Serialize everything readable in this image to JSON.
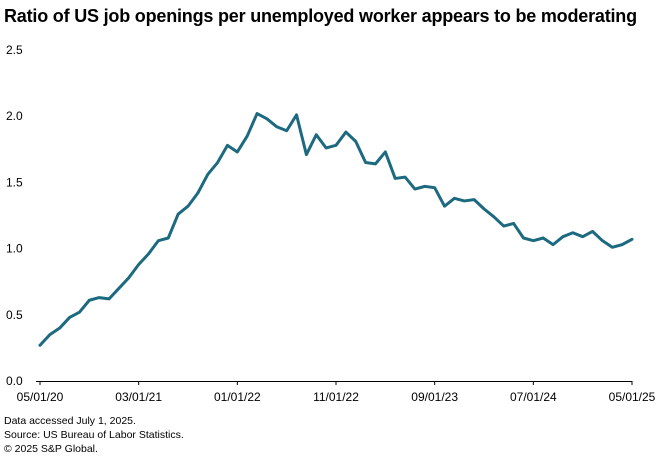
{
  "chart_data": {
    "type": "line",
    "title": "Ratio of US job openings per unemployed worker appears to be moderating",
    "xlabel": "",
    "ylabel": "",
    "x_tick_labels": [
      "05/01/20",
      "03/01/21",
      "01/01/22",
      "11/01/22",
      "09/01/23",
      "07/01/24",
      "05/01/25"
    ],
    "y_tick_labels": [
      "0.0",
      "0.5",
      "1.0",
      "1.5",
      "2.0",
      "2.5"
    ],
    "ylim": [
      0,
      2.5
    ],
    "grid": false,
    "line_color": "#1d6a80",
    "series": [
      {
        "x": [
          "2020-05",
          "2020-06",
          "2020-07",
          "2020-08",
          "2020-09",
          "2020-10",
          "2020-11",
          "2020-12",
          "2021-01",
          "2021-02",
          "2021-03",
          "2021-04",
          "2021-05",
          "2021-06",
          "2021-07",
          "2021-08",
          "2021-09",
          "2021-10",
          "2021-11",
          "2021-12",
          "2022-01",
          "2022-02",
          "2022-03",
          "2022-04",
          "2022-05",
          "2022-06",
          "2022-07",
          "2022-08",
          "2022-09",
          "2022-10",
          "2022-11",
          "2022-12",
          "2023-01",
          "2023-02",
          "2023-03",
          "2023-04",
          "2023-05",
          "2023-06",
          "2023-07",
          "2023-08",
          "2023-09",
          "2023-10",
          "2023-11",
          "2023-12",
          "2024-01",
          "2024-02",
          "2024-03",
          "2024-04",
          "2024-05",
          "2024-06",
          "2024-07",
          "2024-08",
          "2024-09",
          "2024-10",
          "2024-11",
          "2024-12",
          "2025-01",
          "2025-02",
          "2025-03",
          "2025-04",
          "2025-05"
        ],
        "y": [
          0.27,
          0.35,
          0.4,
          0.48,
          0.52,
          0.61,
          0.63,
          0.62,
          0.7,
          0.78,
          0.88,
          0.96,
          1.06,
          1.08,
          1.26,
          1.32,
          1.42,
          1.56,
          1.65,
          1.78,
          1.73,
          1.85,
          2.02,
          1.98,
          1.92,
          1.89,
          2.01,
          1.71,
          1.86,
          1.76,
          1.78,
          1.88,
          1.81,
          1.65,
          1.64,
          1.73,
          1.53,
          1.54,
          1.45,
          1.47,
          1.46,
          1.32,
          1.38,
          1.36,
          1.37,
          1.3,
          1.24,
          1.17,
          1.19,
          1.08,
          1.06,
          1.08,
          1.03,
          1.09,
          1.12,
          1.09,
          1.13,
          1.06,
          1.01,
          1.03,
          1.07
        ]
      }
    ]
  },
  "footnotes": {
    "line1": "Data accessed July 1, 2025.",
    "line2": "Source: US Bureau of Labor Statistics.",
    "line3": "© 2025 S&P Global."
  }
}
